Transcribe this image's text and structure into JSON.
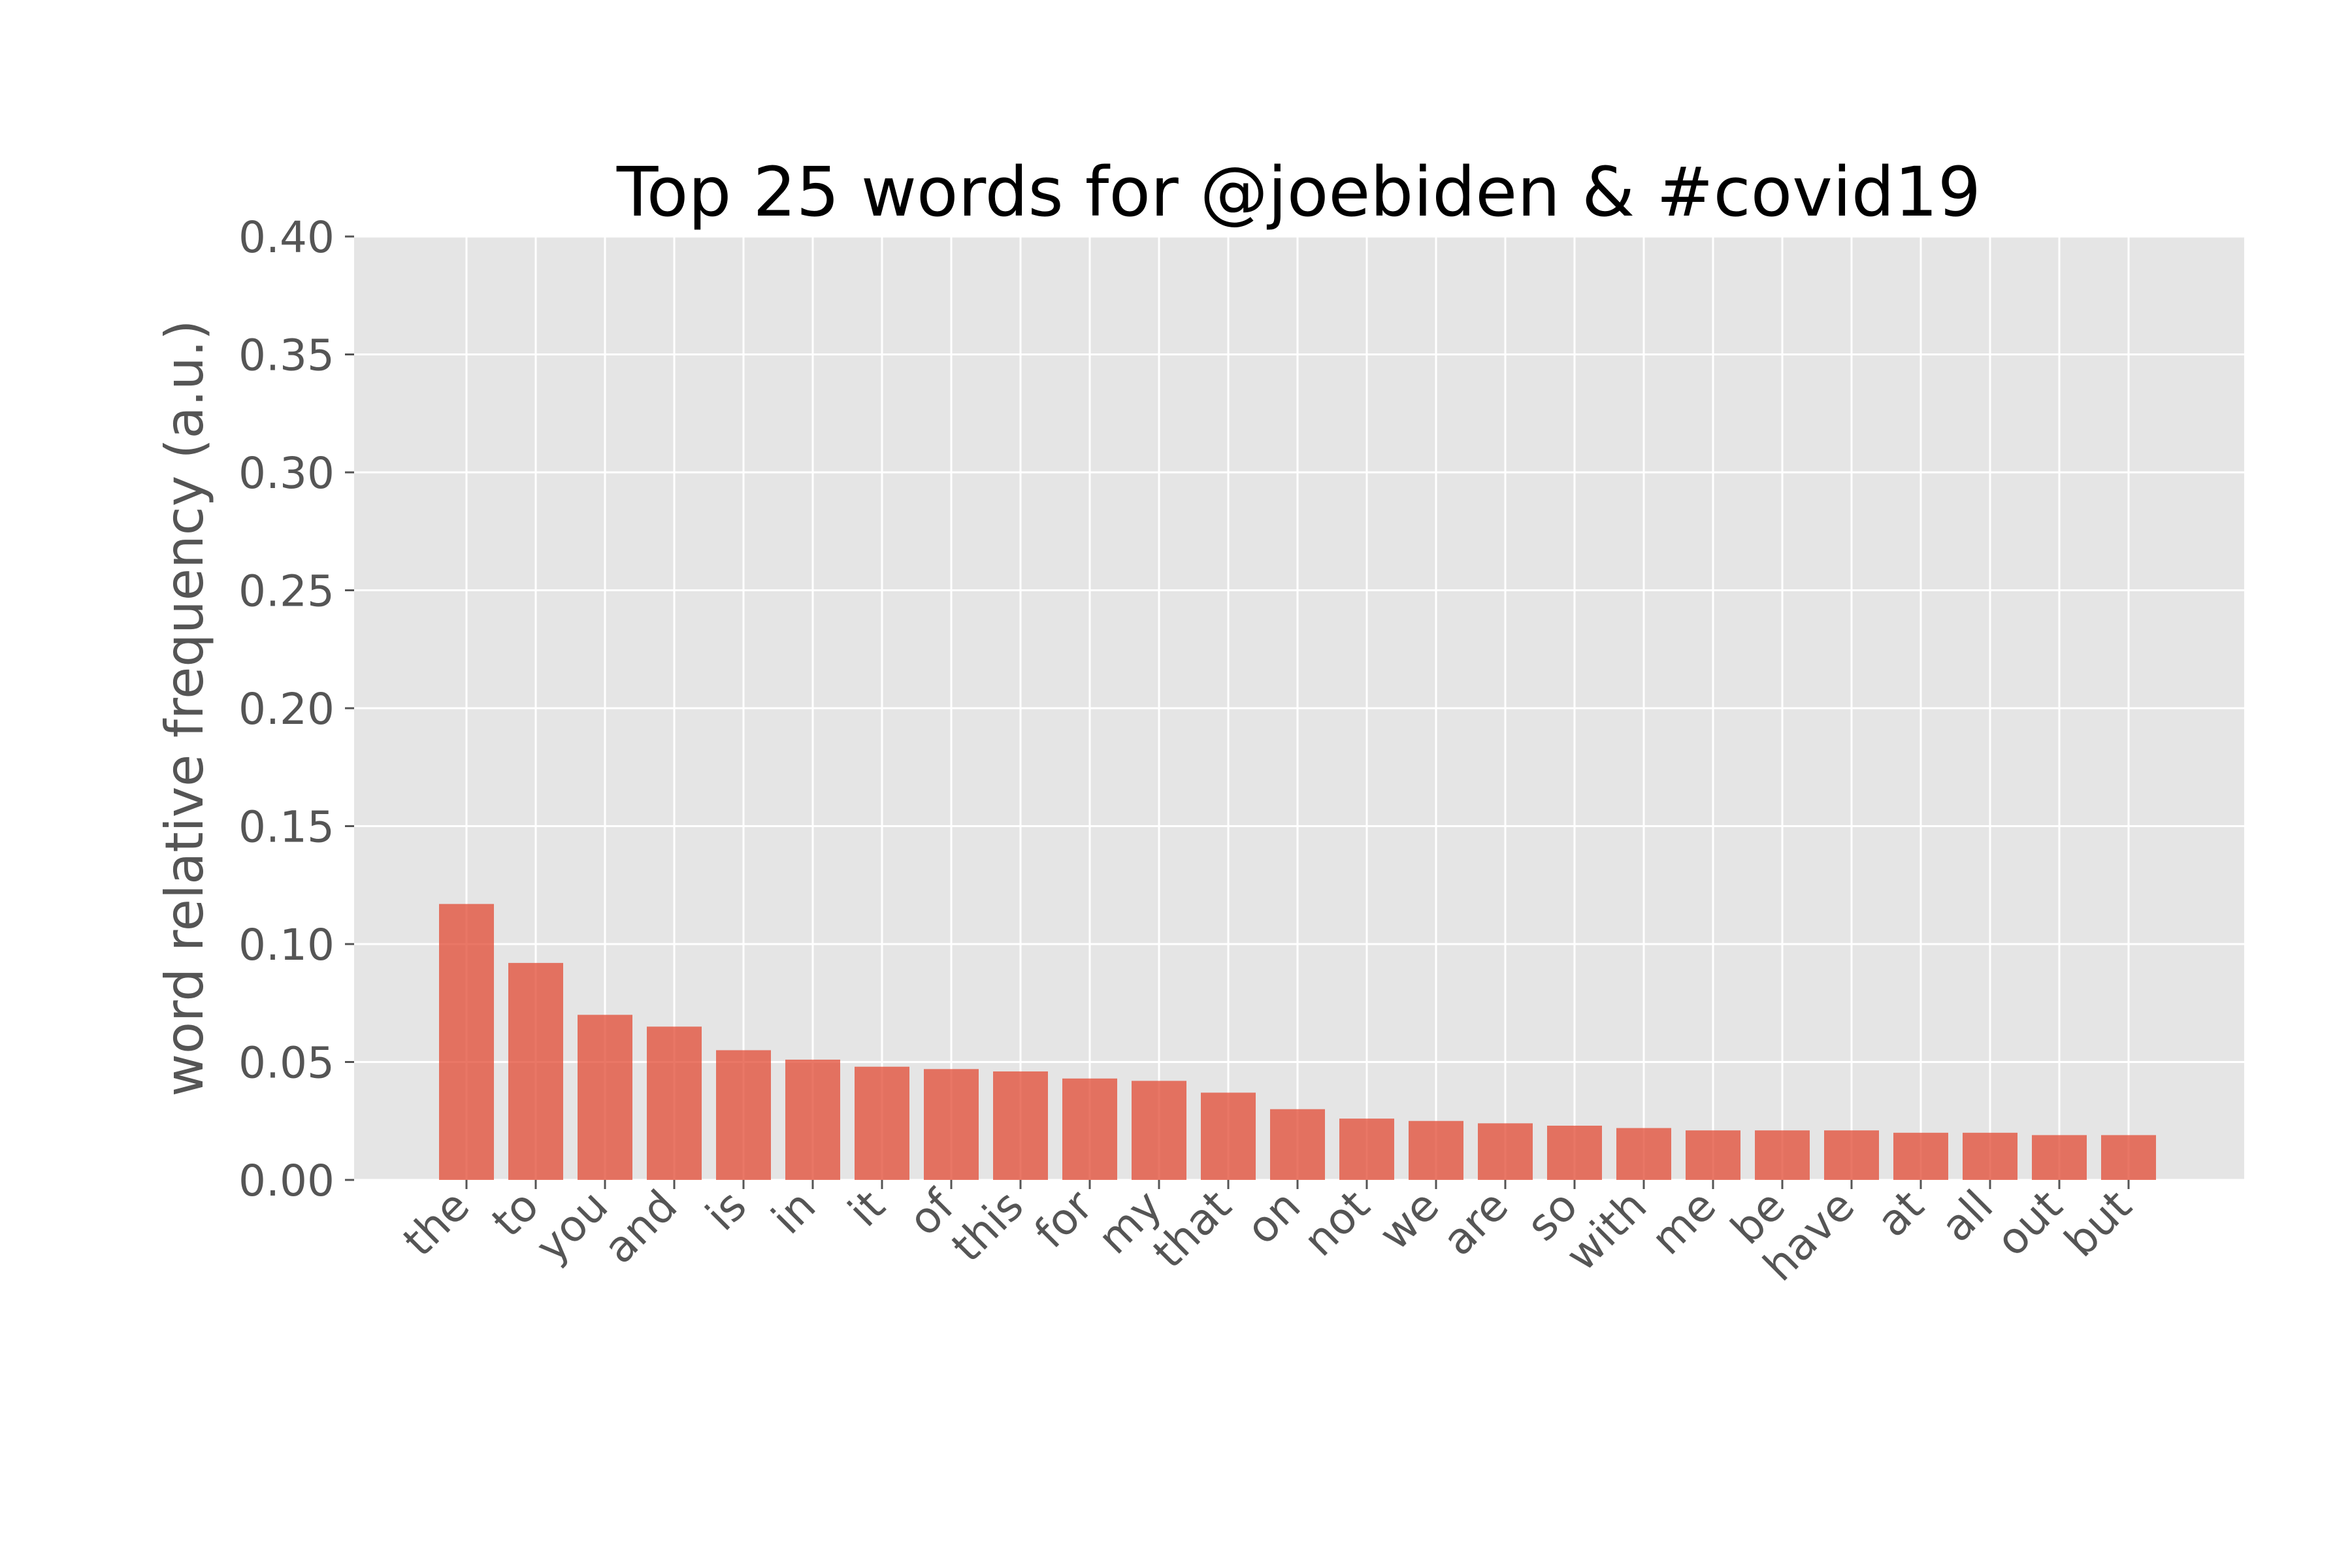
{
  "colors": {
    "plot_background": "#e5e5e5",
    "grid": "#ffffff",
    "bar": "#e24a33",
    "tick_text": "#555555",
    "title_text": "#000000"
  },
  "chart_data": {
    "type": "bar",
    "title": "Top 25 words for @joebiden & #covid19",
    "xlabel": "",
    "ylabel": "word relative frequency (a.u.)",
    "ylim": [
      0,
      0.4
    ],
    "yticks": [
      "0.00",
      "0.05",
      "0.10",
      "0.15",
      "0.20",
      "0.25",
      "0.30",
      "0.35",
      "0.40"
    ],
    "grid": true,
    "categories": [
      "the",
      "to",
      "you",
      "and",
      "is",
      "in",
      "it",
      "of",
      "this",
      "for",
      "my",
      "that",
      "on",
      "not",
      "we",
      "are",
      "so",
      "with",
      "me",
      "be",
      "have",
      "at",
      "all",
      "out",
      "but"
    ],
    "values": [
      0.117,
      0.092,
      0.07,
      0.065,
      0.055,
      0.051,
      0.048,
      0.047,
      0.046,
      0.043,
      0.042,
      0.037,
      0.03,
      0.026,
      0.025,
      0.024,
      0.023,
      0.022,
      0.021,
      0.021,
      0.021,
      0.02,
      0.02,
      0.019,
      0.019
    ]
  }
}
